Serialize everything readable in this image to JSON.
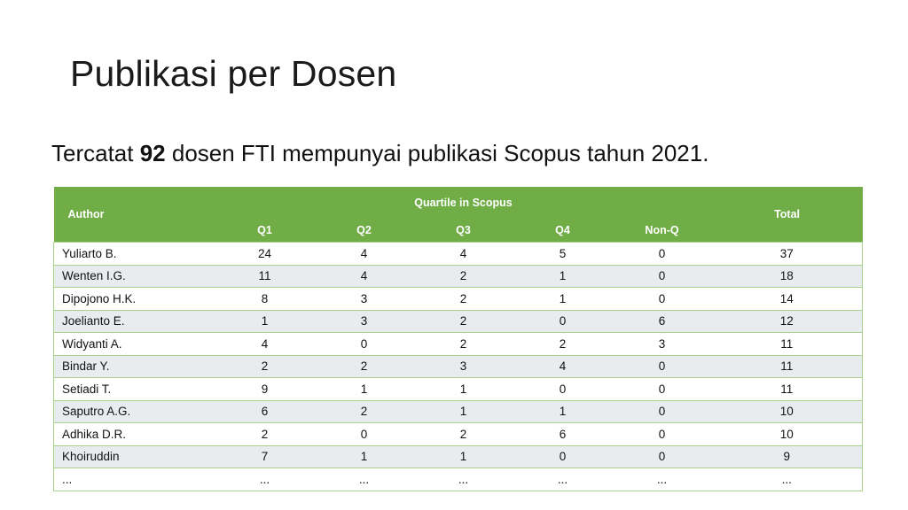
{
  "slide": {
    "title": "Publikasi per Dosen",
    "subtitle_pre": "Tercatat ",
    "subtitle_bold": "92",
    "subtitle_post": " dosen FTI mempunyai publikasi Scopus tahun 2021."
  },
  "table": {
    "header_color": "#70ad47",
    "author_label": "Author",
    "group_label": "Quartile in Scopus",
    "total_label": "Total",
    "quartiles": [
      "Q1",
      "Q2",
      "Q3",
      "Q4",
      "Non-Q"
    ],
    "rows": [
      [
        "Yuliarto B.",
        "24",
        "4",
        "4",
        "5",
        "0",
        "37"
      ],
      [
        "Wenten I.G.",
        "11",
        "4",
        "2",
        "1",
        "0",
        "18"
      ],
      [
        "Dipojono H.K.",
        "8",
        "3",
        "2",
        "1",
        "0",
        "14"
      ],
      [
        "Joelianto E.",
        "1",
        "3",
        "2",
        "0",
        "6",
        "12"
      ],
      [
        "Widyanti A.",
        "4",
        "0",
        "2",
        "2",
        "3",
        "11"
      ],
      [
        "Bindar Y.",
        "2",
        "2",
        "3",
        "4",
        "0",
        "11"
      ],
      [
        "Setiadi T.",
        "9",
        "1",
        "1",
        "0",
        "0",
        "11"
      ],
      [
        "Saputro A.G.",
        "6",
        "2",
        "1",
        "1",
        "0",
        "10"
      ],
      [
        "Adhika D.R.",
        "2",
        "0",
        "2",
        "6",
        "0",
        "10"
      ],
      [
        "Khoiruddin",
        "7",
        "1",
        "1",
        "0",
        "0",
        "9"
      ],
      [
        "...",
        "...",
        "...",
        "...",
        "...",
        "...",
        "..."
      ]
    ]
  }
}
